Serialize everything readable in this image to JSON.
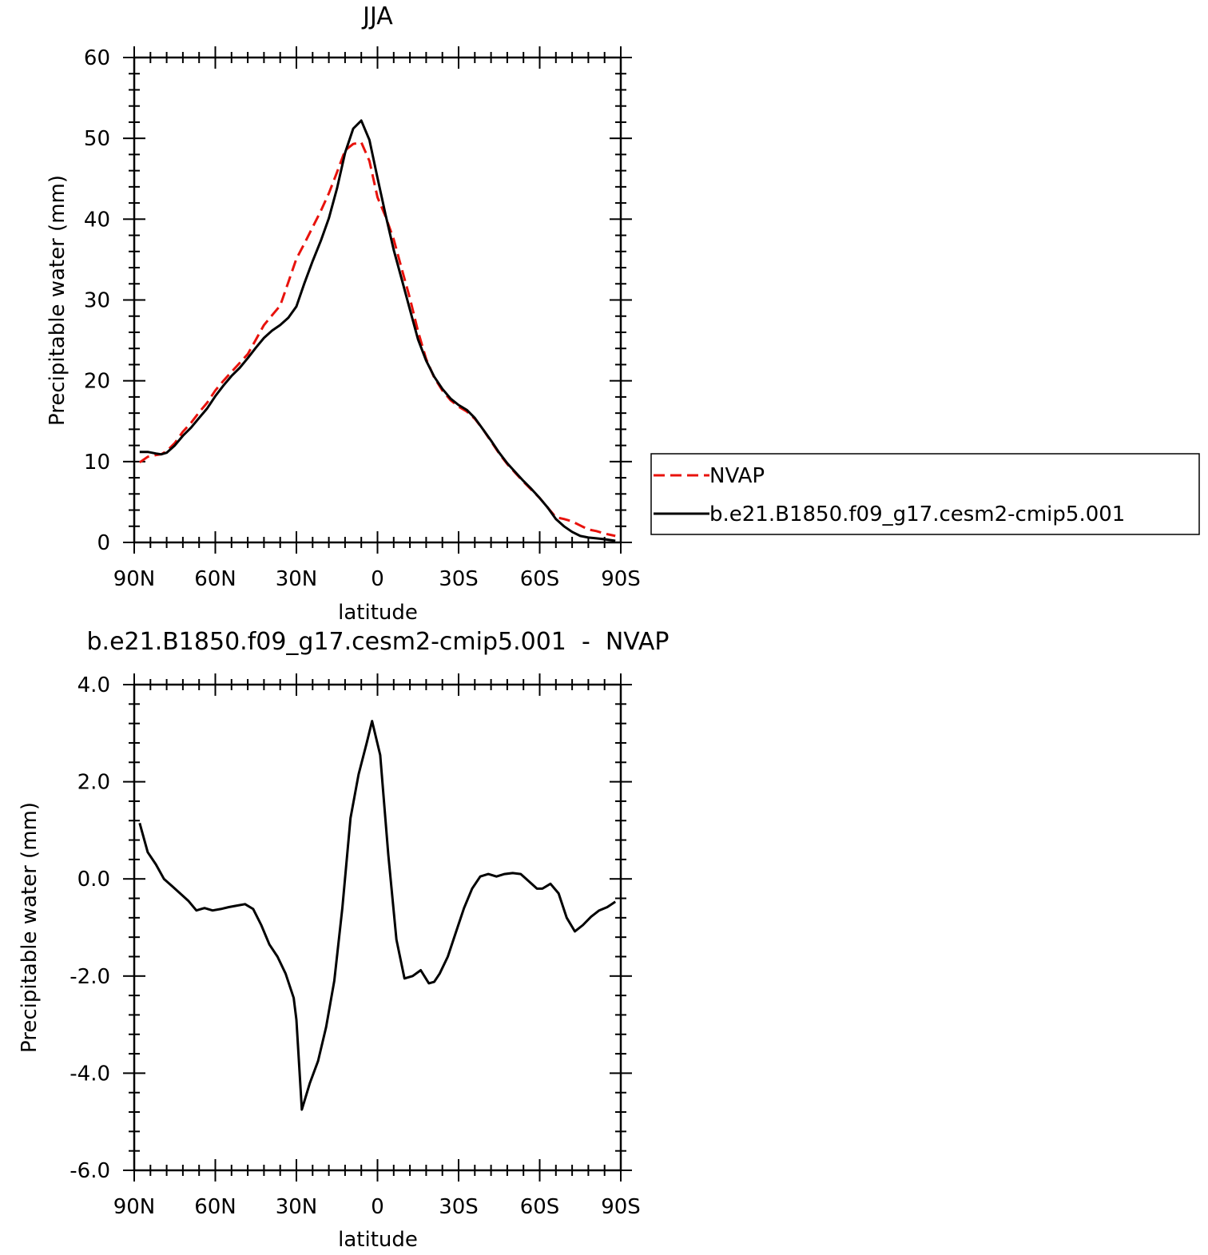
{
  "colors": {
    "nvap": "#e8120c",
    "model": "#000000",
    "axis": "#000000",
    "background": "#ffffff"
  },
  "chart_data": [
    {
      "type": "line",
      "title": "JJA",
      "xlabel": "latitude",
      "ylabel": "Precipitable water (mm)",
      "xlim": [
        -90,
        90
      ],
      "ylim": [
        0,
        60
      ],
      "x_direction": "north-to-south",
      "xticks": [
        {
          "value": -90,
          "label": "90N"
        },
        {
          "value": -60,
          "label": "60N"
        },
        {
          "value": -30,
          "label": "30N"
        },
        {
          "value": 0,
          "label": "0"
        },
        {
          "value": 30,
          "label": "30S"
        },
        {
          "value": 60,
          "label": "60S"
        },
        {
          "value": 90,
          "label": "90S"
        }
      ],
      "yticks": [
        {
          "value": 0,
          "label": "0"
        },
        {
          "value": 10,
          "label": "10"
        },
        {
          "value": 20,
          "label": "20"
        },
        {
          "value": 30,
          "label": "30"
        },
        {
          "value": 40,
          "label": "40"
        },
        {
          "value": 50,
          "label": "50"
        },
        {
          "value": 60,
          "label": "60"
        }
      ],
      "legend_position": "right",
      "series": [
        {
          "name": "NVAP",
          "style": "dashed",
          "color": "#e8120c",
          "x": [
            -88,
            -85,
            -82,
            -80,
            -78,
            -75,
            -72,
            -69,
            -66,
            -63,
            -60,
            -57,
            -54,
            -51,
            -48,
            -45,
            -42,
            -39,
            -36,
            -33,
            -30,
            -27,
            -24,
            -21,
            -18,
            -15,
            -12,
            -9,
            -6,
            -3,
            0,
            3,
            6,
            9,
            12,
            15,
            18,
            21,
            24,
            27,
            30,
            33,
            36,
            39,
            42,
            45,
            48,
            51,
            54,
            57,
            60,
            63,
            66,
            69,
            72,
            75,
            78,
            81,
            84,
            88
          ],
          "y": [
            9.9,
            10.6,
            10.8,
            10.9,
            11.3,
            12.3,
            13.7,
            14.8,
            16.1,
            17.3,
            18.8,
            20.0,
            21.1,
            22.2,
            23.3,
            25.1,
            26.9,
            28.1,
            29.3,
            32.2,
            35.1,
            37.0,
            39.0,
            41.0,
            43.2,
            45.8,
            48.5,
            49.3,
            49.5,
            47.2,
            42.7,
            40.3,
            37.5,
            33.8,
            30.2,
            26.1,
            22.7,
            20.4,
            18.8,
            17.6,
            16.8,
            16.2,
            15.3,
            14.0,
            12.5,
            11.0,
            9.7,
            8.6,
            7.5,
            6.5,
            5.5,
            4.3,
            3.1,
            2.9,
            2.6,
            2.1,
            1.6,
            1.4,
            1.1,
            0.8
          ]
        },
        {
          "name": "b.e21.B1850.f09_g17.cesm2-cmip5.001",
          "style": "solid",
          "color": "#000000",
          "x": [
            -88,
            -85,
            -82,
            -80,
            -78,
            -75,
            -72,
            -69,
            -66,
            -63,
            -60,
            -57,
            -54,
            -51,
            -48,
            -45,
            -42,
            -39,
            -36,
            -33,
            -30,
            -27,
            -24,
            -21,
            -18,
            -15,
            -12,
            -9,
            -6,
            -3,
            0,
            3,
            6,
            9,
            12,
            15,
            18,
            21,
            24,
            27,
            30,
            33,
            36,
            39,
            42,
            45,
            48,
            51,
            54,
            57,
            60,
            63,
            66,
            69,
            72,
            75,
            78,
            81,
            84,
            88
          ],
          "y": [
            11.2,
            11.2,
            11.0,
            10.9,
            11.1,
            12.0,
            13.2,
            14.2,
            15.4,
            16.6,
            18.1,
            19.4,
            20.6,
            21.6,
            22.8,
            24.1,
            25.3,
            26.2,
            26.9,
            27.8,
            29.2,
            32.1,
            34.8,
            37.3,
            40.1,
            43.8,
            48.2,
            51.2,
            52.2,
            49.8,
            45.1,
            40.5,
            36.2,
            32.5,
            28.8,
            25.1,
            22.5,
            20.5,
            19.0,
            17.8,
            17.0,
            16.4,
            15.4,
            14.0,
            12.6,
            11.1,
            9.8,
            8.7,
            7.6,
            6.6,
            5.5,
            4.3,
            2.9,
            2.0,
            1.3,
            0.8,
            0.6,
            0.5,
            0.4,
            0.2
          ]
        }
      ]
    },
    {
      "type": "line",
      "title": "b.e21.B1850.f09_g17.cesm2-cmip5.001  -  NVAP",
      "xlabel": "latitude",
      "ylabel": "Precipitable water (mm)",
      "xlim": [
        -90,
        90
      ],
      "ylim": [
        -6.0,
        4.0
      ],
      "x_direction": "north-to-south",
      "xticks": [
        {
          "value": -90,
          "label": "90N"
        },
        {
          "value": -60,
          "label": "60N"
        },
        {
          "value": -30,
          "label": "30N"
        },
        {
          "value": 0,
          "label": "0"
        },
        {
          "value": 30,
          "label": "30S"
        },
        {
          "value": 60,
          "label": "60S"
        },
        {
          "value": 90,
          "label": "90S"
        }
      ],
      "yticks": [
        {
          "value": -6.0,
          "label": "-6.0"
        },
        {
          "value": -4.0,
          "label": "-4.0"
        },
        {
          "value": -2.0,
          "label": "-2.0"
        },
        {
          "value": 0.0,
          "label": "0.0"
        },
        {
          "value": 2.0,
          "label": "2.0"
        },
        {
          "value": 4.0,
          "label": "4.0"
        }
      ],
      "series": [
        {
          "style": "solid",
          "color": "#000000",
          "x": [
            -88,
            -85,
            -82,
            -79,
            -76,
            -73,
            -70,
            -67,
            -64,
            -61,
            -58,
            -55,
            -52,
            -49,
            -46,
            -43,
            -40,
            -37,
            -34,
            -31,
            -30,
            -28,
            -25,
            -22,
            -19,
            -16,
            -13,
            -10,
            -7,
            -4,
            -2,
            1,
            4,
            7,
            10,
            13,
            16,
            19,
            21,
            23,
            26,
            29,
            32,
            35,
            38,
            41,
            44,
            47,
            50,
            53,
            56,
            59,
            61,
            64,
            67,
            70,
            73,
            76,
            79,
            82,
            85,
            88
          ],
          "y": [
            1.15,
            0.55,
            0.3,
            0.0,
            -0.15,
            -0.3,
            -0.45,
            -0.65,
            -0.6,
            -0.65,
            -0.62,
            -0.58,
            -0.55,
            -0.52,
            -0.62,
            -0.95,
            -1.35,
            -1.6,
            -1.95,
            -2.45,
            -2.9,
            -4.75,
            -4.2,
            -3.75,
            -3.05,
            -2.1,
            -0.6,
            1.25,
            2.15,
            2.8,
            3.25,
            2.55,
            0.5,
            -1.25,
            -2.05,
            -2.0,
            -1.88,
            -2.15,
            -2.12,
            -1.95,
            -1.6,
            -1.1,
            -0.6,
            -0.2,
            0.05,
            0.1,
            0.05,
            0.1,
            0.12,
            0.1,
            -0.05,
            -0.2,
            -0.2,
            -0.1,
            -0.3,
            -0.8,
            -1.08,
            -0.95,
            -0.78,
            -0.65,
            -0.58,
            -0.47
          ]
        }
      ]
    }
  ]
}
